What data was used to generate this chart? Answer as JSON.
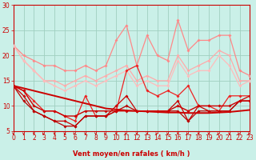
{
  "background_color": "#caf0e8",
  "grid_color": "#a0cfc0",
  "xlabel": "Vent moyen/en rafales ( km/h )",
  "xlim": [
    0,
    23
  ],
  "ylim": [
    5,
    30
  ],
  "yticks": [
    5,
    10,
    15,
    20,
    25,
    30
  ],
  "xticks": [
    0,
    1,
    2,
    3,
    4,
    5,
    6,
    7,
    8,
    9,
    10,
    11,
    12,
    13,
    14,
    15,
    16,
    17,
    18,
    19,
    20,
    21,
    22,
    23
  ],
  "series": [
    {
      "y": [
        22,
        20,
        19,
        18,
        18,
        17,
        17,
        18,
        17,
        18,
        23,
        26,
        18,
        24,
        20,
        19,
        27,
        21,
        23,
        23,
        24,
        24,
        17,
        16
      ],
      "color": "#ff8888",
      "lw": 0.9,
      "marker": "D",
      "ms": 2.0
    },
    {
      "y": [
        22,
        19,
        17,
        15,
        15,
        14,
        15,
        16,
        15,
        16,
        17,
        18,
        15,
        16,
        15,
        15,
        20,
        17,
        18,
        19,
        21,
        20,
        15,
        15
      ],
      "color": "#ffaaaa",
      "lw": 0.9,
      "marker": "D",
      "ms": 2.0
    },
    {
      "y": [
        22,
        19,
        17,
        15,
        14,
        13,
        14,
        15,
        14,
        15,
        16,
        17,
        14,
        15,
        14,
        14,
        19,
        16,
        17,
        17,
        20,
        18,
        14,
        15
      ],
      "color": "#ffbbbb",
      "lw": 0.9,
      "marker": "D",
      "ms": 2.0
    },
    {
      "y": [
        14,
        13,
        11,
        9,
        9,
        8,
        7,
        12,
        8,
        8,
        9,
        17,
        18,
        13,
        12,
        13,
        12,
        14,
        10,
        10,
        9,
        12,
        12,
        12
      ],
      "color": "#ee2222",
      "lw": 0.9,
      "marker": "D",
      "ms": 2.0
    },
    {
      "y": [
        14,
        12,
        9,
        8,
        7,
        7,
        6,
        8,
        8,
        8,
        10,
        12,
        9,
        9,
        9,
        9,
        11,
        7,
        10,
        9,
        9,
        9,
        11,
        12
      ],
      "color": "#cc0000",
      "lw": 0.9,
      "marker": "D",
      "ms": 2.0
    },
    {
      "y": [
        14,
        11,
        9,
        8,
        7,
        6,
        6,
        8,
        8,
        8,
        9,
        10,
        9,
        9,
        9,
        9,
        9,
        7,
        9,
        9,
        9,
        9,
        11,
        11
      ],
      "color": "#bb0000",
      "lw": 0.9,
      "marker": "D",
      "ms": 2.0
    },
    {
      "y": [
        14,
        13,
        10,
        9,
        9,
        8,
        8,
        9,
        9,
        9,
        9,
        9,
        9,
        9,
        9,
        9,
        10,
        9,
        10,
        10,
        10,
        10,
        11,
        11
      ],
      "color": "#cc0000",
      "lw": 1.0,
      "marker": "D",
      "ms": 2.0
    },
    {
      "y": [
        14,
        13.5,
        13,
        12.5,
        12,
        11.5,
        11,
        10.5,
        10,
        9.5,
        9.3,
        9.1,
        9.0,
        8.9,
        8.8,
        8.7,
        8.7,
        8.6,
        8.6,
        8.6,
        8.7,
        8.8,
        9.0,
        9.2
      ],
      "color": "#cc0000",
      "lw": 1.4,
      "marker": null,
      "ms": 0
    }
  ],
  "wind_arrow_angles": [
    90,
    90,
    90,
    45,
    90,
    90,
    45,
    90,
    90,
    45,
    90,
    45,
    90,
    90,
    45,
    90,
    90,
    45,
    90,
    90,
    45,
    90,
    45,
    45
  ],
  "arrow_color": "#cc0000",
  "tick_color": "#cc0000",
  "label_color": "#cc0000"
}
